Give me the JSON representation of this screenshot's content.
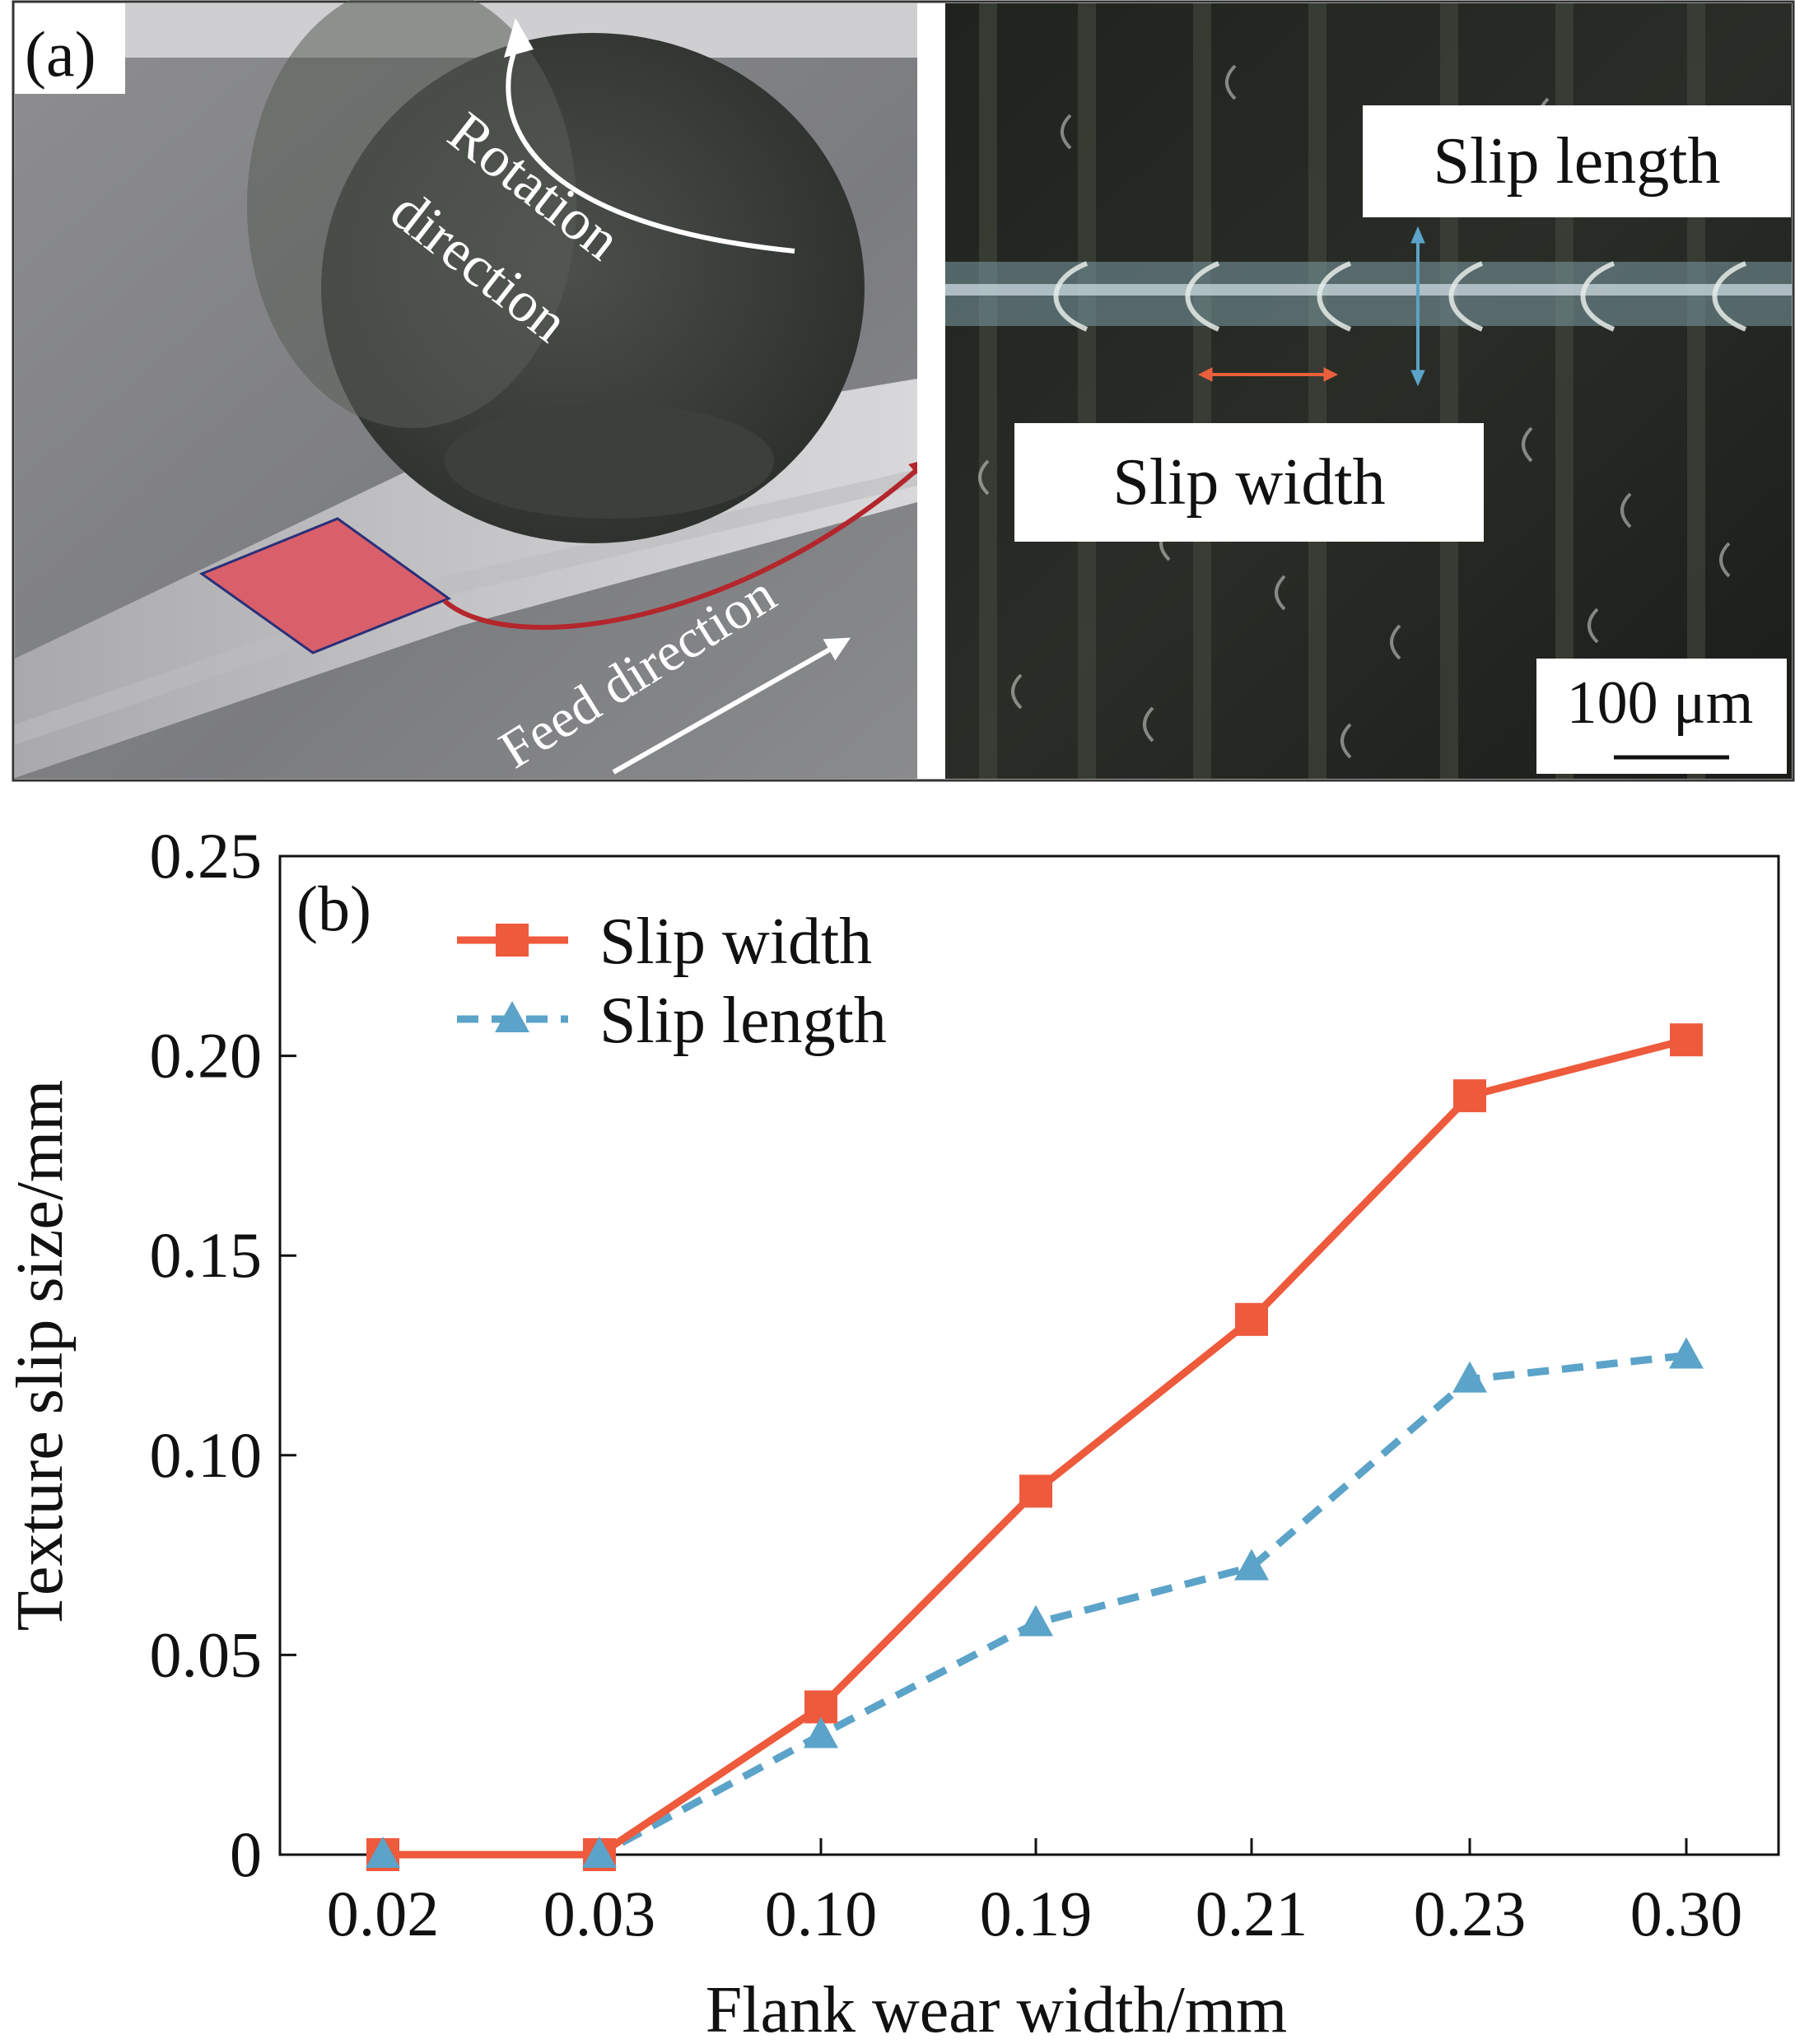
{
  "panel_a": {
    "label": "(a)",
    "rotation_line1": "Rotation",
    "rotation_line2": "direction",
    "feed": "Feed direction",
    "slip_length": "Slip length",
    "slip_width": "Slip width",
    "scale": "100 μm",
    "colors": {
      "highlight": "#d9606a",
      "arrow_red": "#b3262c",
      "slip_width_arrow": "#e8603c",
      "slip_length_arrow": "#5ba3c8"
    }
  },
  "chart_data": {
    "type": "line",
    "panel_label": "(b)",
    "title": "",
    "xlabel": "Flank wear width/mm",
    "ylabel": "Texture slip size/mm",
    "categories": [
      "0.02",
      "0.03",
      "0.10",
      "0.19",
      "0.21",
      "0.23",
      "0.30"
    ],
    "yticks": [
      "0",
      "0.05",
      "0.10",
      "0.15",
      "0.20",
      "0.25"
    ],
    "ylim": [
      0,
      0.25
    ],
    "grid": false,
    "legend_position": "top-left",
    "series": [
      {
        "name": "Slip width",
        "color": "#ee5a3c",
        "marker": "square",
        "line": "solid",
        "values": [
          0,
          0,
          0.037,
          0.091,
          0.134,
          0.19,
          0.204
        ]
      },
      {
        "name": "Slip length",
        "color": "#5ba3c8",
        "marker": "triangle",
        "line": "dashed",
        "values": [
          0,
          0,
          0.03,
          0.058,
          0.072,
          0.119,
          0.125
        ]
      }
    ]
  }
}
